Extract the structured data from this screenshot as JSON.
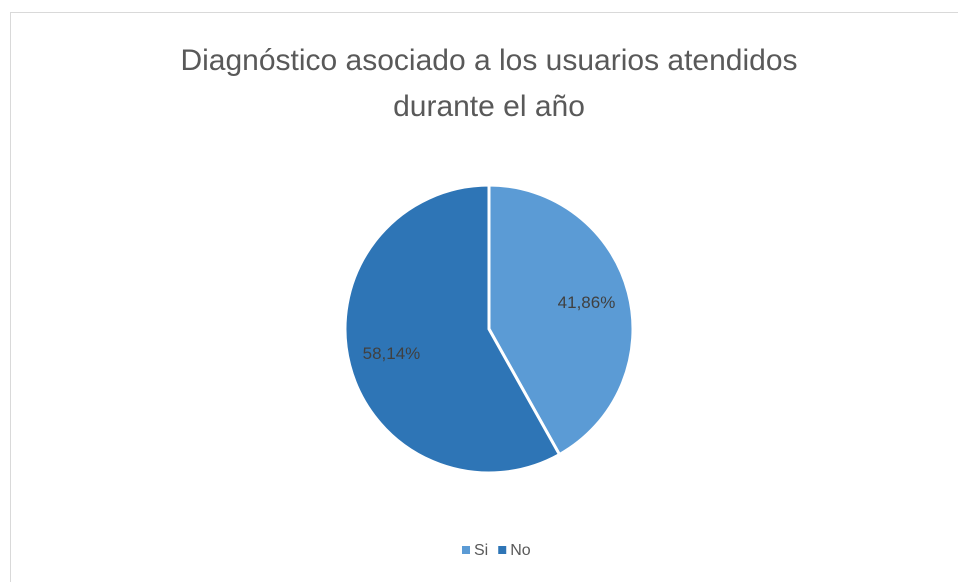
{
  "chart_data": {
    "type": "pie",
    "title": "Diagnóstico asociado a los usuarios atendidos durante el año",
    "categories": [
      "Si",
      "No"
    ],
    "values": [
      41.86,
      58.14
    ],
    "value_labels": [
      "41,86%",
      "58,14%"
    ],
    "colors": [
      "#5b9bd5",
      "#2e75b6"
    ],
    "legend": "bottom"
  }
}
